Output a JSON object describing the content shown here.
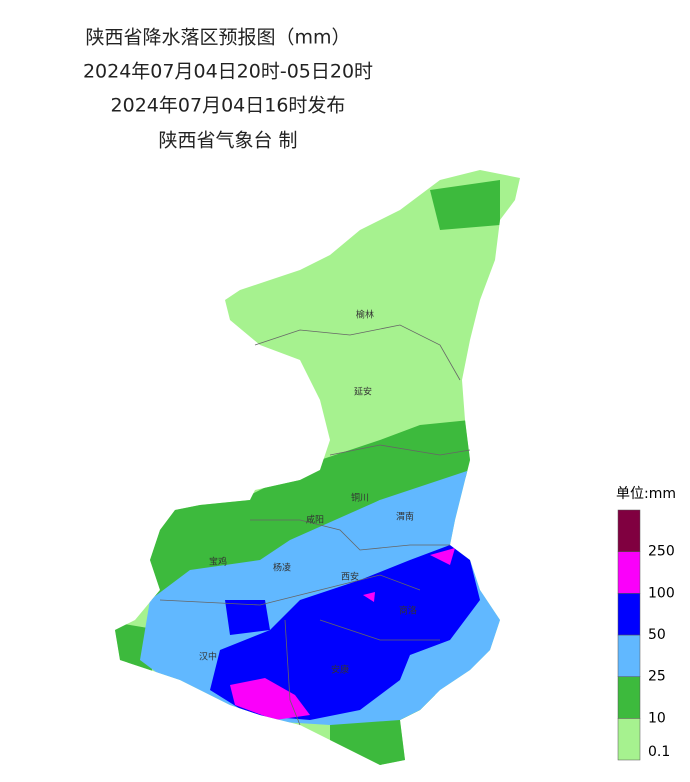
{
  "title": "陕西省降水落区预报图（mm）",
  "period": "2024年07月04日20时-05日20时",
  "issued": "2024年07月04日16时发布",
  "issuer": "陕西省气象台 制",
  "cities": [
    "榆林",
    "延安",
    "铜川",
    "咸阳",
    "渭南",
    "宝鸡",
    "杨凌",
    "西安",
    "商洛",
    "汉中",
    "安康"
  ],
  "legend": {
    "title": "单位:mm",
    "ticks": [
      0.1,
      10,
      25,
      50,
      100,
      250
    ],
    "colors": [
      "#a6f28f",
      "#3dba3d",
      "#61b8ff",
      "#0000fe",
      "#fa00fa",
      "#800040"
    ]
  }
}
